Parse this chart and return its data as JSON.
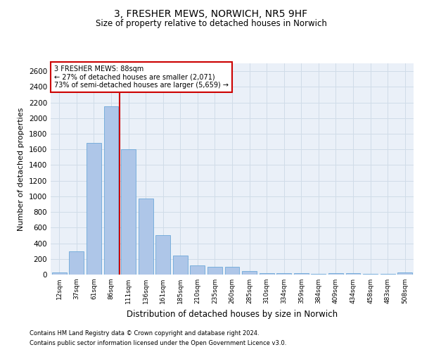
{
  "title1": "3, FRESHER MEWS, NORWICH, NR5 9HF",
  "title2": "Size of property relative to detached houses in Norwich",
  "xlabel": "Distribution of detached houses by size in Norwich",
  "ylabel": "Number of detached properties",
  "categories": [
    "12sqm",
    "37sqm",
    "61sqm",
    "86sqm",
    "111sqm",
    "136sqm",
    "161sqm",
    "185sqm",
    "210sqm",
    "235sqm",
    "260sqm",
    "285sqm",
    "310sqm",
    "334sqm",
    "359sqm",
    "384sqm",
    "409sqm",
    "434sqm",
    "458sqm",
    "483sqm",
    "508sqm"
  ],
  "values": [
    25,
    300,
    1680,
    2150,
    1600,
    970,
    500,
    245,
    120,
    100,
    100,
    45,
    20,
    20,
    20,
    10,
    20,
    20,
    5,
    5,
    25
  ],
  "bar_color": "#aec6e8",
  "bar_edge_color": "#5a9fd4",
  "vline_x": 3.5,
  "vline_color": "#cc0000",
  "annotation_line1": "3 FRESHER MEWS: 88sqm",
  "annotation_line2": "← 27% of detached houses are smaller (2,071)",
  "annotation_line3": "73% of semi-detached houses are larger (5,659) →",
  "annotation_box_color": "#ffffff",
  "annotation_box_edge": "#cc0000",
  "ylim": [
    0,
    2700
  ],
  "yticks": [
    0,
    200,
    400,
    600,
    800,
    1000,
    1200,
    1400,
    1600,
    1800,
    2000,
    2200,
    2400,
    2600
  ],
  "grid_color": "#d0dce8",
  "background_color": "#eaf0f8",
  "footer1": "Contains HM Land Registry data © Crown copyright and database right 2024.",
  "footer2": "Contains public sector information licensed under the Open Government Licence v3.0."
}
